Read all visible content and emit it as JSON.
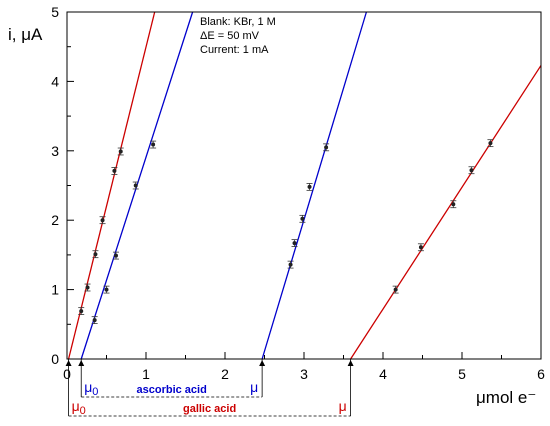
{
  "chart_data": {
    "type": "scatter",
    "xlabel": "μmol e⁻",
    "ylabel": "i, μA",
    "xlim": [
      0,
      6
    ],
    "ylim": [
      0,
      5
    ],
    "xticks": [
      "0",
      "1",
      "2",
      "3",
      "4",
      "5",
      "6"
    ],
    "yticks": [
      "0",
      "1",
      "2",
      "3",
      "4",
      "5"
    ],
    "grid": false,
    "info_lines": [
      "Blank: KBr, 1 M",
      "ΔE = 50 mV",
      "Current: 1 mA"
    ],
    "series": [
      {
        "color": "#cc0000",
        "points": [
          [
            0.18,
            0.69
          ],
          [
            0.26,
            1.03
          ],
          [
            0.36,
            1.51
          ],
          [
            0.45,
            2.0
          ],
          [
            0.6,
            2.71
          ],
          [
            0.68,
            2.99
          ]
        ],
        "error": 0.05,
        "fit": [
          [
            0.02,
            0.0
          ],
          [
            1.11,
            5.0
          ]
        ]
      },
      {
        "color": "#0000cc",
        "points": [
          [
            0.35,
            0.56
          ],
          [
            0.5,
            1.0
          ],
          [
            0.62,
            1.49
          ],
          [
            0.87,
            2.5
          ],
          [
            1.09,
            3.09
          ]
        ],
        "error": 0.05,
        "fit": [
          [
            0.18,
            0.0
          ],
          [
            1.59,
            5.0
          ]
        ]
      },
      {
        "color": "#0000cc",
        "points": [
          [
            2.83,
            1.36
          ],
          [
            2.88,
            1.67
          ],
          [
            2.98,
            2.02
          ],
          [
            3.07,
            2.48
          ],
          [
            3.28,
            3.05
          ]
        ],
        "error": 0.05,
        "fit": [
          [
            2.47,
            0.0
          ],
          [
            3.79,
            5.0
          ]
        ]
      },
      {
        "color": "#cc0000",
        "points": [
          [
            4.16,
            1.0
          ],
          [
            4.48,
            1.61
          ],
          [
            4.89,
            2.23
          ],
          [
            5.12,
            2.72
          ],
          [
            5.36,
            3.11
          ]
        ],
        "error": 0.05,
        "fit": [
          [
            3.59,
            0.0
          ],
          [
            6.0,
            4.23
          ]
        ]
      }
    ],
    "brackets": [
      {
        "label": "ascorbic acid",
        "color": "#0000cc",
        "start": 0.18,
        "end": 2.47,
        "start_label": "μ0",
        "end_label": "μ"
      },
      {
        "label": "gallic acid",
        "color": "#cc0000",
        "start": 0.02,
        "end": 3.59,
        "start_label": "μ0",
        "end_label": "μ"
      }
    ]
  }
}
